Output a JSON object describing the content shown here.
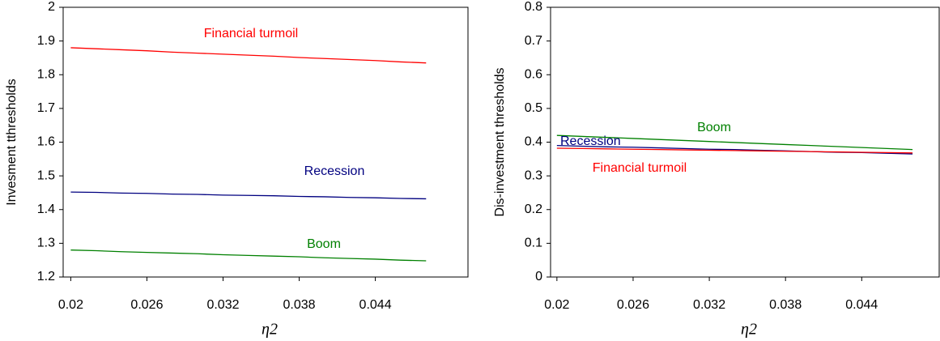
{
  "chart_data": [
    {
      "type": "line",
      "ylabel": "Invesment tthresholds",
      "xlabel": "η2",
      "x": [
        0.02,
        0.022,
        0.024,
        0.026,
        0.028,
        0.03,
        0.032,
        0.034,
        0.036,
        0.038,
        0.04,
        0.042,
        0.044,
        0.046,
        0.048
      ],
      "xlim": [
        0.0194,
        0.0513
      ],
      "xticks": [
        0.02,
        0.026,
        0.032,
        0.038,
        0.044
      ],
      "ylim": [
        1.2,
        2
      ],
      "yticks": [
        1.2,
        1.3,
        1.4,
        1.5,
        1.6,
        1.7,
        1.8,
        1.9,
        2
      ],
      "series": [
        {
          "name": "Financial turmoil",
          "color": "#ff0000",
          "values": [
            1.88,
            1.877,
            1.874,
            1.871,
            1.867,
            1.864,
            1.861,
            1.858,
            1.855,
            1.851,
            1.848,
            1.845,
            1.842,
            1.838,
            1.835
          ]
        },
        {
          "name": "Recession",
          "color": "#000080",
          "values": [
            1.452,
            1.451,
            1.449,
            1.448,
            1.446,
            1.445,
            1.443,
            1.442,
            1.441,
            1.439,
            1.438,
            1.436,
            1.435,
            1.433,
            1.432
          ]
        },
        {
          "name": "Boom",
          "color": "#008000",
          "values": [
            1.28,
            1.278,
            1.275,
            1.273,
            1.271,
            1.269,
            1.266,
            1.264,
            1.262,
            1.26,
            1.257,
            1.255,
            1.253,
            1.25,
            1.248
          ]
        }
      ]
    },
    {
      "type": "line",
      "ylabel": "Dis-investment thresholds",
      "xlabel": "η2",
      "x": [
        0.02,
        0.022,
        0.024,
        0.026,
        0.028,
        0.03,
        0.032,
        0.034,
        0.036,
        0.038,
        0.04,
        0.042,
        0.044,
        0.046,
        0.048
      ],
      "xlim": [
        0.0195,
        0.0501
      ],
      "xticks": [
        0.02,
        0.026,
        0.032,
        0.038,
        0.044
      ],
      "ylim": [
        0,
        0.8
      ],
      "yticks": [
        0,
        0.1,
        0.2,
        0.3,
        0.4,
        0.5,
        0.6,
        0.7,
        0.8
      ],
      "series": [
        {
          "name": "Boom",
          "color": "#008000",
          "values": [
            0.42,
            0.417,
            0.414,
            0.411,
            0.408,
            0.405,
            0.402,
            0.399,
            0.396,
            0.393,
            0.39,
            0.387,
            0.384,
            0.381,
            0.378
          ]
        },
        {
          "name": "Recession",
          "color": "#000080",
          "values": [
            0.39,
            0.388,
            0.386,
            0.385,
            0.383,
            0.381,
            0.379,
            0.378,
            0.376,
            0.374,
            0.372,
            0.37,
            0.369,
            0.367,
            0.365
          ]
        },
        {
          "name": "Financial turmoil",
          "color": "#ff0000",
          "values": [
            0.382,
            0.381,
            0.38,
            0.379,
            0.378,
            0.377,
            0.376,
            0.375,
            0.374,
            0.373,
            0.372,
            0.371,
            0.37,
            0.369,
            0.368
          ]
        }
      ]
    }
  ]
}
